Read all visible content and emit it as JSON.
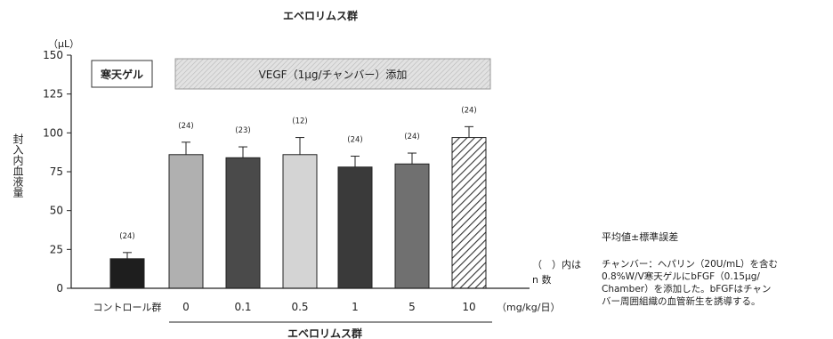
{
  "chart_data": {
    "type": "bar",
    "title": "エベロリムス群",
    "ylabel": "封入内血液量",
    "yunit": "（μL）",
    "ylim": [
      0,
      150
    ],
    "yticks": [
      0,
      25,
      50,
      75,
      100,
      125,
      150
    ],
    "categories": [
      "コントロール群",
      "0",
      "0.1",
      "0.5",
      "1",
      "5",
      "10"
    ],
    "values": [
      19,
      86,
      84,
      86,
      78,
      80,
      97
    ],
    "errors": [
      4,
      8,
      7,
      11,
      7,
      7,
      7
    ],
    "n_labels": [
      "(24)",
      "(24)",
      "(23)",
      "(12)",
      "(24)",
      "(24)",
      "(24)"
    ],
    "bar_colors": [
      "#1e1e1e",
      "#b0b0b0",
      "#4a4a4a",
      "#d4d4d4",
      "#3a3a3a",
      "#707070",
      "hatch"
    ],
    "x_unit": "（mg/kg/日）",
    "x_group_label": "エベロリムス群",
    "n_note_line1": "（　）内は",
    "n_note_line2": "n 数",
    "legend_box_label": "寒天ゲル",
    "legend_band_label": "VEGF（1μg/チャンバー）添加",
    "grid": false
  },
  "note_title": "平均値±標準誤差",
  "note_body": "チャンバー：ヘパリン（20U/mL）を含む\n0.8%W/V寒天ゲルにbFGF（0.15μg/\nChamber）を添加した。bFGFはチャン\nバー周囲組織の血管新生を誘導する。"
}
